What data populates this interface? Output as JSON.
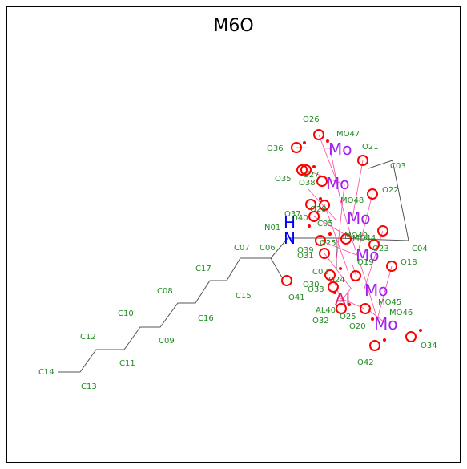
{
  "title": "M6O",
  "colors": {
    "carbon_label": "#228b22",
    "oxygen": "#ff0000",
    "molybdenum": "#a020f0",
    "aluminium": "#e0206a",
    "nitrogen": "#0000ff",
    "bond": "#555555",
    "metal_bond": "#ff3399"
  },
  "atoms": {
    "C14": "C14",
    "C13": "C13",
    "C12": "C12",
    "C11": "C11",
    "C10": "C10",
    "C09": "C09",
    "C08": "C08",
    "C16": "C16",
    "C17": "C17",
    "C15": "C15",
    "C07": "C07",
    "C06": "C06",
    "C05": "C05",
    "C03": "C03",
    "C04": "C04",
    "C02": "C02",
    "N01": "N01",
    "N": "N",
    "H": "H",
    "O41": "O41",
    "O26": "O26",
    "O36": "O36",
    "O35": "O35",
    "O38": "O38",
    "O27": "O27",
    "O21": "O21",
    "O22": "O22",
    "O28": "O28",
    "O37": "O37",
    "O40": "O40",
    "O39": "O39",
    "O31": "O31",
    "O23": "O23",
    "O18": "O18",
    "O19": "O19",
    "O30": "O30",
    "O33": "O33",
    "O24": "O24",
    "O32": "O32",
    "O25": "O25",
    "O20": "O20",
    "O34": "O34",
    "O42": "O42",
    "MO47": "MO47",
    "MO48": "MO48",
    "MO49": "MO49",
    "MO44": "MO44",
    "MO45": "MO45",
    "MO46": "MO46",
    "AL40": "AL40",
    "Mo": "Mo",
    "Al": "Al"
  }
}
